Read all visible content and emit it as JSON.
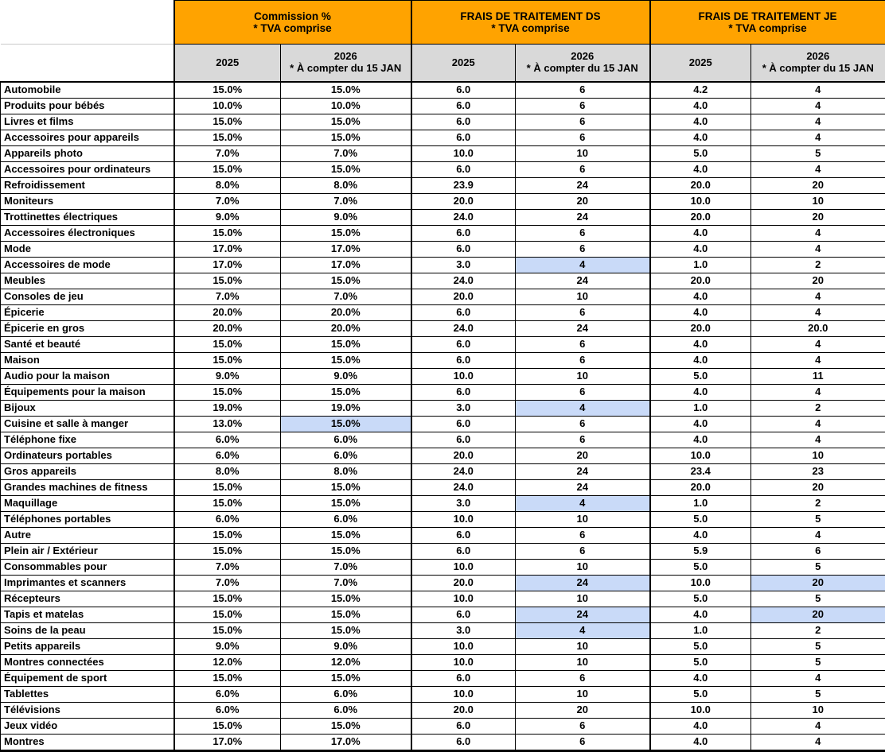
{
  "chart_data": {
    "type": "table",
    "colors": {
      "group_header_bg": "#FFA300",
      "year_header_bg": "#D9D9D9",
      "highlight_bg": "#C9DAF8",
      "text": "#000000"
    },
    "column_groups": [
      {
        "title": "Commission %",
        "subtitle": "* TVA comprise"
      },
      {
        "title": "FRAIS DE TRAITEMENT DS",
        "subtitle": "* TVA comprise"
      },
      {
        "title": "FRAIS DE TRAITEMENT JE",
        "subtitle": "* TVA comprise"
      }
    ],
    "year_headers": {
      "y2025": "2025",
      "y2026": "2026",
      "y2026_note": "* À compter du 15 JAN"
    },
    "rows": [
      {
        "category": "Automobile",
        "values": [
          "15.0%",
          "15.0%",
          "6.0",
          "6",
          "4.2",
          "4"
        ],
        "highlight": []
      },
      {
        "category": "Produits pour bébés",
        "values": [
          "10.0%",
          "10.0%",
          "6.0",
          "6",
          "4.0",
          "4"
        ],
        "highlight": []
      },
      {
        "category": "Livres et films",
        "values": [
          "15.0%",
          "15.0%",
          "6.0",
          "6",
          "4.0",
          "4"
        ],
        "highlight": []
      },
      {
        "category": "Accessoires pour appareils",
        "values": [
          "15.0%",
          "15.0%",
          "6.0",
          "6",
          "4.0",
          "4"
        ],
        "highlight": []
      },
      {
        "category": "Appareils photo",
        "values": [
          "7.0%",
          "7.0%",
          "10.0",
          "10",
          "5.0",
          "5"
        ],
        "highlight": []
      },
      {
        "category": "Accessoires pour ordinateurs",
        "values": [
          "15.0%",
          "15.0%",
          "6.0",
          "6",
          "4.0",
          "4"
        ],
        "highlight": []
      },
      {
        "category": "Refroidissement",
        "values": [
          "8.0%",
          "8.0%",
          "23.9",
          "24",
          "20.0",
          "20"
        ],
        "highlight": []
      },
      {
        "category": "Moniteurs",
        "values": [
          "7.0%",
          "7.0%",
          "20.0",
          "20",
          "10.0",
          "10"
        ],
        "highlight": []
      },
      {
        "category": "Trottinettes électriques",
        "values": [
          "9.0%",
          "9.0%",
          "24.0",
          "24",
          "20.0",
          "20"
        ],
        "highlight": []
      },
      {
        "category": "Accessoires électroniques",
        "values": [
          "15.0%",
          "15.0%",
          "6.0",
          "6",
          "4.0",
          "4"
        ],
        "highlight": []
      },
      {
        "category": "Mode",
        "values": [
          "17.0%",
          "17.0%",
          "6.0",
          "6",
          "4.0",
          "4"
        ],
        "highlight": []
      },
      {
        "category": "Accessoires de mode",
        "values": [
          "17.0%",
          "17.0%",
          "3.0",
          "4",
          "1.0",
          "2"
        ],
        "highlight": [
          3
        ]
      },
      {
        "category": "Meubles",
        "values": [
          "15.0%",
          "15.0%",
          "24.0",
          "24",
          "20.0",
          "20"
        ],
        "highlight": []
      },
      {
        "category": "Consoles de jeu",
        "values": [
          "7.0%",
          "7.0%",
          "20.0",
          "10",
          "4.0",
          "4"
        ],
        "highlight": []
      },
      {
        "category": "Épicerie",
        "values": [
          "20.0%",
          "20.0%",
          "6.0",
          "6",
          "4.0",
          "4"
        ],
        "highlight": []
      },
      {
        "category": "Épicerie en gros",
        "values": [
          "20.0%",
          "20.0%",
          "24.0",
          "24",
          "20.0",
          "20.0"
        ],
        "highlight": []
      },
      {
        "category": "Santé et beauté",
        "values": [
          "15.0%",
          "15.0%",
          "6.0",
          "6",
          "4.0",
          "4"
        ],
        "highlight": []
      },
      {
        "category": "Maison",
        "values": [
          "15.0%",
          "15.0%",
          "6.0",
          "6",
          "4.0",
          "4"
        ],
        "highlight": []
      },
      {
        "category": "Audio pour la maison",
        "values": [
          "9.0%",
          "9.0%",
          "10.0",
          "10",
          "5.0",
          "11"
        ],
        "highlight": []
      },
      {
        "category": "Équipements pour la maison",
        "values": [
          "15.0%",
          "15.0%",
          "6.0",
          "6",
          "4.0",
          "4"
        ],
        "highlight": []
      },
      {
        "category": "Bijoux",
        "values": [
          "19.0%",
          "19.0%",
          "3.0",
          "4",
          "1.0",
          "2"
        ],
        "highlight": [
          3
        ]
      },
      {
        "category": "Cuisine et salle à manger",
        "values": [
          "13.0%",
          "15.0%",
          "6.0",
          "6",
          "4.0",
          "4"
        ],
        "highlight": [
          1
        ]
      },
      {
        "category": "Téléphone fixe",
        "values": [
          "6.0%",
          "6.0%",
          "6.0",
          "6",
          "4.0",
          "4"
        ],
        "highlight": []
      },
      {
        "category": "Ordinateurs portables",
        "values": [
          "6.0%",
          "6.0%",
          "20.0",
          "20",
          "10.0",
          "10"
        ],
        "highlight": []
      },
      {
        "category": "Gros appareils",
        "values": [
          "8.0%",
          "8.0%",
          "24.0",
          "24",
          "23.4",
          "23"
        ],
        "highlight": []
      },
      {
        "category": "Grandes machines de fitness",
        "values": [
          "15.0%",
          "15.0%",
          "24.0",
          "24",
          "20.0",
          "20"
        ],
        "highlight": []
      },
      {
        "category": "Maquillage",
        "values": [
          "15.0%",
          "15.0%",
          "3.0",
          "4",
          "1.0",
          "2"
        ],
        "highlight": [
          3
        ]
      },
      {
        "category": "Téléphones portables",
        "values": [
          "6.0%",
          "6.0%",
          "10.0",
          "10",
          "5.0",
          "5"
        ],
        "highlight": []
      },
      {
        "category": "Autre",
        "values": [
          "15.0%",
          "15.0%",
          "6.0",
          "6",
          "4.0",
          "4"
        ],
        "highlight": []
      },
      {
        "category": "Plein air / Extérieur",
        "values": [
          "15.0%",
          "15.0%",
          "6.0",
          "6",
          "5.9",
          "6"
        ],
        "highlight": []
      },
      {
        "category": "Consommables pour",
        "values": [
          "7.0%",
          "7.0%",
          "10.0",
          "10",
          "5.0",
          "5"
        ],
        "highlight": []
      },
      {
        "category": "Imprimantes et scanners",
        "values": [
          "7.0%",
          "7.0%",
          "20.0",
          "24",
          "10.0",
          "20"
        ],
        "highlight": [
          3,
          5
        ]
      },
      {
        "category": "Récepteurs",
        "values": [
          "15.0%",
          "15.0%",
          "10.0",
          "10",
          "5.0",
          "5"
        ],
        "highlight": []
      },
      {
        "category": "Tapis et matelas",
        "values": [
          "15.0%",
          "15.0%",
          "6.0",
          "24",
          "4.0",
          "20"
        ],
        "highlight": [
          3,
          5
        ]
      },
      {
        "category": "Soins de la peau",
        "values": [
          "15.0%",
          "15.0%",
          "3.0",
          "4",
          "1.0",
          "2"
        ],
        "highlight": [
          3
        ]
      },
      {
        "category": "Petits appareils",
        "values": [
          "9.0%",
          "9.0%",
          "10.0",
          "10",
          "5.0",
          "5"
        ],
        "highlight": []
      },
      {
        "category": "Montres connectées",
        "values": [
          "12.0%",
          "12.0%",
          "10.0",
          "10",
          "5.0",
          "5"
        ],
        "highlight": []
      },
      {
        "category": "Équipement de sport",
        "values": [
          "15.0%",
          "15.0%",
          "6.0",
          "6",
          "4.0",
          "4"
        ],
        "highlight": []
      },
      {
        "category": "Tablettes",
        "values": [
          "6.0%",
          "6.0%",
          "10.0",
          "10",
          "5.0",
          "5"
        ],
        "highlight": []
      },
      {
        "category": "Télévisions",
        "values": [
          "6.0%",
          "6.0%",
          "20.0",
          "20",
          "10.0",
          "10"
        ],
        "highlight": []
      },
      {
        "category": "Jeux vidéo",
        "values": [
          "15.0%",
          "15.0%",
          "6.0",
          "6",
          "4.0",
          "4"
        ],
        "highlight": []
      },
      {
        "category": "Montres",
        "values": [
          "17.0%",
          "17.0%",
          "6.0",
          "6",
          "4.0",
          "4"
        ],
        "highlight": []
      }
    ]
  }
}
